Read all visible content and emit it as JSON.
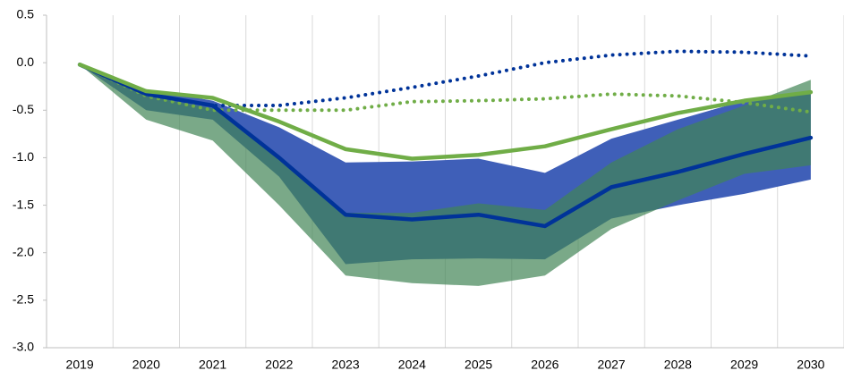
{
  "chart_data": {
    "type": "line",
    "categories": [
      "2019",
      "2020",
      "2021",
      "2022",
      "2023",
      "2024",
      "2025",
      "2026",
      "2027",
      "2028",
      "2029",
      "2030"
    ],
    "ylim": [
      -3,
      0.5
    ],
    "yticks": [
      0.5,
      {
        "value": 0,
        "label": "0.0"
      },
      -0.5,
      {
        "value": -1,
        "label": "-1.0"
      },
      -1.5,
      {
        "value": -2,
        "label": "-2.0"
      },
      -2.5,
      {
        "value": -3,
        "label": "-3.0"
      }
    ],
    "xgrid": true,
    "bands": [
      {
        "color": "#3f5fb8",
        "opacity": 1,
        "upper": [
          -0.02,
          -0.28,
          -0.4,
          -0.68,
          -1.05,
          -1.04,
          -1.01,
          -1.16,
          -0.8,
          -0.6,
          -0.4,
          -0.33
        ],
        "lower": [
          -0.02,
          -0.5,
          -0.6,
          -1.2,
          -2.12,
          -2.07,
          -2.06,
          -2.07,
          -1.64,
          -1.5,
          -1.38,
          -1.23
        ]
      },
      {
        "color": "#418456",
        "opacity": 0.7,
        "upper": [
          -0.02,
          -0.35,
          -0.48,
          -1.0,
          -1.58,
          -1.58,
          -1.48,
          -1.55,
          -1.05,
          -0.7,
          -0.45,
          -0.18
        ],
        "lower": [
          -0.02,
          -0.6,
          -0.82,
          -1.5,
          -2.24,
          -2.32,
          -2.35,
          -2.24,
          -1.75,
          -1.45,
          -1.17,
          -1.08
        ]
      }
    ],
    "series": [
      {
        "color": "#003399",
        "style": "dotted",
        "values": [
          -0.02,
          -0.33,
          -0.45,
          -0.45,
          -0.37,
          -0.26,
          -0.14,
          0.0,
          0.08,
          0.12,
          0.11,
          0.07
        ]
      },
      {
        "color": "#70ad47",
        "style": "dotted",
        "values": [
          -0.02,
          -0.35,
          -0.5,
          -0.5,
          -0.5,
          -0.41,
          -0.4,
          -0.38,
          -0.33,
          -0.35,
          -0.42,
          -0.52
        ]
      },
      {
        "color": "#003399",
        "style": "solid",
        "values": [
          -0.02,
          -0.33,
          -0.45,
          -1.0,
          -1.6,
          -1.65,
          -1.6,
          -1.72,
          -1.31,
          -1.15,
          -0.96,
          -0.79
        ]
      },
      {
        "color": "#70ad47",
        "style": "solid",
        "values": [
          -0.02,
          -0.3,
          -0.37,
          -0.62,
          -0.91,
          -1.01,
          -0.97,
          -0.88,
          -0.7,
          -0.53,
          -0.4,
          -0.31
        ]
      }
    ]
  }
}
